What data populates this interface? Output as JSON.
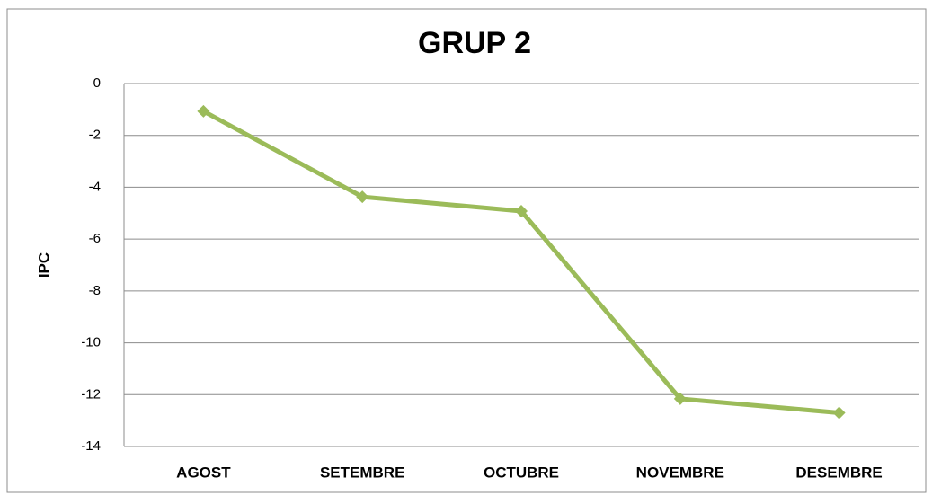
{
  "chart_data": {
    "type": "line",
    "title": "GRUP 2",
    "y_label": "IPC",
    "categories": [
      "AGOST",
      "SETEMBRE",
      "OCTUBRE",
      "NOVEMBRE",
      "DESEMBRE"
    ],
    "series": [
      {
        "name": "GRUP 2",
        "color": "#9bbb59",
        "values": [
          -1.07,
          -4.37,
          -4.92,
          -12.16,
          -12.7
        ]
      }
    ],
    "ylim": [
      -14,
      0
    ],
    "yticks": [
      0,
      -2,
      -4,
      -6,
      -8,
      -10,
      -12,
      -14
    ],
    "grid": true
  }
}
